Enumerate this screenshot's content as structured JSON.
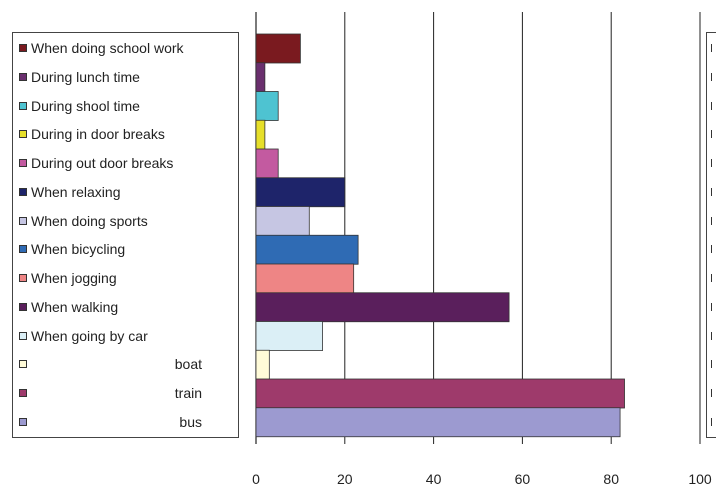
{
  "chart_data": {
    "type": "bar",
    "orientation": "horizontal",
    "categories": [
      "When doing school work",
      "During lunch time",
      "During shool time",
      "During in door breaks",
      "During out door breaks",
      "When relaxing",
      "When doing sports",
      "When bicycling",
      "When jogging",
      "When walking",
      "When going by car",
      "boat",
      "train",
      "bus"
    ],
    "values": [
      10,
      2,
      5,
      2,
      5,
      20,
      12,
      23,
      22,
      57,
      15,
      3,
      83,
      82
    ],
    "colors": [
      "#7a1a1f",
      "#6a2f6e",
      "#4ec3d1",
      "#e6df2a",
      "#c35aa0",
      "#1e246a",
      "#c6c6e3",
      "#2f6bb4",
      "#ee8585",
      "#5a1f5c",
      "#dbeff6",
      "#fffbd8",
      "#9e3a6b",
      "#9c9ad0"
    ],
    "xlim": [
      0,
      100
    ],
    "xticks": [
      "0",
      "20",
      "40",
      "60",
      "80",
      "100"
    ],
    "grid": true,
    "legend_position": "left",
    "title": "",
    "xlabel": "",
    "ylabel": ""
  }
}
